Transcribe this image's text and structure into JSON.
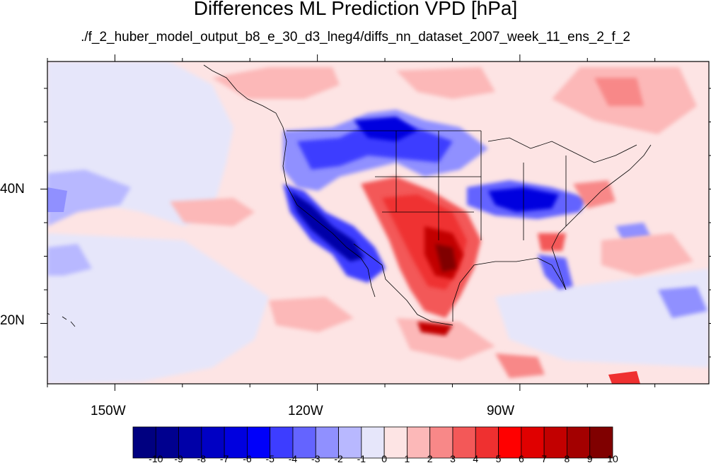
{
  "title": "Differences ML Prediction VPD [hPa]",
  "subtitle": "./f_2_huber_model_output_b8_e_30_d3_lneg4/diffs_nn_dataset_2007_week_11_ens_2_f_2",
  "map": {
    "lon_range": [
      -160,
      -62
    ],
    "lat_range": [
      11,
      59
    ],
    "lat_labels": [
      "40N",
      "20N"
    ],
    "lon_labels": [
      "150W",
      "120W",
      "90W"
    ],
    "lat_label_values": [
      40,
      20
    ],
    "lon_label_values": [
      -150,
      -120,
      -90
    ]
  },
  "colorbar": {
    "labels": [
      "-10",
      "-9",
      "-8",
      "-7",
      "-6",
      "-5",
      "-4",
      "-3",
      "-2",
      "-1",
      "0",
      "1",
      "2",
      "3",
      "4",
      "5",
      "6",
      "7",
      "8",
      "9",
      "10"
    ],
    "colors": [
      "#000080",
      "#00008f",
      "#0000a8",
      "#0000c4",
      "#0000df",
      "#0000fa",
      "#3d3dff",
      "#6464ff",
      "#9090ff",
      "#b8b8ff",
      "#e6e6fa",
      "#fde4e4",
      "#fcb8b8",
      "#f88888",
      "#f35858",
      "#ef3030",
      "#ff0000",
      "#e00000",
      "#c20000",
      "#a30000",
      "#800000"
    ]
  }
}
